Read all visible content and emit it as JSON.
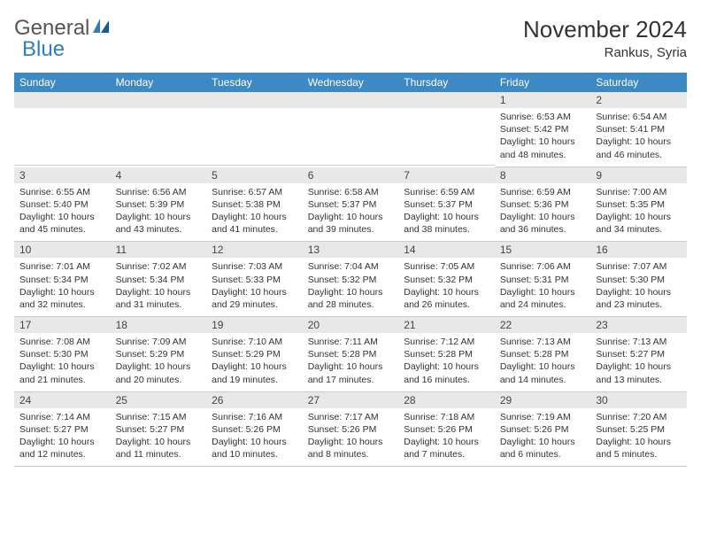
{
  "logo": {
    "word1": "General",
    "word2": "Blue"
  },
  "title": "November 2024",
  "subtitle": "Rankus, Syria",
  "colors": {
    "header_bg": "#3d89c4",
    "header_fg": "#ffffff",
    "daynum_bg": "#e8e8e8",
    "body_fg": "#333333",
    "logo_blue": "#2f7fbf"
  },
  "day_names": [
    "Sunday",
    "Monday",
    "Tuesday",
    "Wednesday",
    "Thursday",
    "Friday",
    "Saturday"
  ],
  "weeks": [
    [
      null,
      null,
      null,
      null,
      null,
      {
        "n": "1",
        "sr": "Sunrise: 6:53 AM",
        "ss": "Sunset: 5:42 PM",
        "dl": "Daylight: 10 hours and 48 minutes."
      },
      {
        "n": "2",
        "sr": "Sunrise: 6:54 AM",
        "ss": "Sunset: 5:41 PM",
        "dl": "Daylight: 10 hours and 46 minutes."
      }
    ],
    [
      {
        "n": "3",
        "sr": "Sunrise: 6:55 AM",
        "ss": "Sunset: 5:40 PM",
        "dl": "Daylight: 10 hours and 45 minutes."
      },
      {
        "n": "4",
        "sr": "Sunrise: 6:56 AM",
        "ss": "Sunset: 5:39 PM",
        "dl": "Daylight: 10 hours and 43 minutes."
      },
      {
        "n": "5",
        "sr": "Sunrise: 6:57 AM",
        "ss": "Sunset: 5:38 PM",
        "dl": "Daylight: 10 hours and 41 minutes."
      },
      {
        "n": "6",
        "sr": "Sunrise: 6:58 AM",
        "ss": "Sunset: 5:37 PM",
        "dl": "Daylight: 10 hours and 39 minutes."
      },
      {
        "n": "7",
        "sr": "Sunrise: 6:59 AM",
        "ss": "Sunset: 5:37 PM",
        "dl": "Daylight: 10 hours and 38 minutes."
      },
      {
        "n": "8",
        "sr": "Sunrise: 6:59 AM",
        "ss": "Sunset: 5:36 PM",
        "dl": "Daylight: 10 hours and 36 minutes."
      },
      {
        "n": "9",
        "sr": "Sunrise: 7:00 AM",
        "ss": "Sunset: 5:35 PM",
        "dl": "Daylight: 10 hours and 34 minutes."
      }
    ],
    [
      {
        "n": "10",
        "sr": "Sunrise: 7:01 AM",
        "ss": "Sunset: 5:34 PM",
        "dl": "Daylight: 10 hours and 32 minutes."
      },
      {
        "n": "11",
        "sr": "Sunrise: 7:02 AM",
        "ss": "Sunset: 5:34 PM",
        "dl": "Daylight: 10 hours and 31 minutes."
      },
      {
        "n": "12",
        "sr": "Sunrise: 7:03 AM",
        "ss": "Sunset: 5:33 PM",
        "dl": "Daylight: 10 hours and 29 minutes."
      },
      {
        "n": "13",
        "sr": "Sunrise: 7:04 AM",
        "ss": "Sunset: 5:32 PM",
        "dl": "Daylight: 10 hours and 28 minutes."
      },
      {
        "n": "14",
        "sr": "Sunrise: 7:05 AM",
        "ss": "Sunset: 5:32 PM",
        "dl": "Daylight: 10 hours and 26 minutes."
      },
      {
        "n": "15",
        "sr": "Sunrise: 7:06 AM",
        "ss": "Sunset: 5:31 PM",
        "dl": "Daylight: 10 hours and 24 minutes."
      },
      {
        "n": "16",
        "sr": "Sunrise: 7:07 AM",
        "ss": "Sunset: 5:30 PM",
        "dl": "Daylight: 10 hours and 23 minutes."
      }
    ],
    [
      {
        "n": "17",
        "sr": "Sunrise: 7:08 AM",
        "ss": "Sunset: 5:30 PM",
        "dl": "Daylight: 10 hours and 21 minutes."
      },
      {
        "n": "18",
        "sr": "Sunrise: 7:09 AM",
        "ss": "Sunset: 5:29 PM",
        "dl": "Daylight: 10 hours and 20 minutes."
      },
      {
        "n": "19",
        "sr": "Sunrise: 7:10 AM",
        "ss": "Sunset: 5:29 PM",
        "dl": "Daylight: 10 hours and 19 minutes."
      },
      {
        "n": "20",
        "sr": "Sunrise: 7:11 AM",
        "ss": "Sunset: 5:28 PM",
        "dl": "Daylight: 10 hours and 17 minutes."
      },
      {
        "n": "21",
        "sr": "Sunrise: 7:12 AM",
        "ss": "Sunset: 5:28 PM",
        "dl": "Daylight: 10 hours and 16 minutes."
      },
      {
        "n": "22",
        "sr": "Sunrise: 7:13 AM",
        "ss": "Sunset: 5:28 PM",
        "dl": "Daylight: 10 hours and 14 minutes."
      },
      {
        "n": "23",
        "sr": "Sunrise: 7:13 AM",
        "ss": "Sunset: 5:27 PM",
        "dl": "Daylight: 10 hours and 13 minutes."
      }
    ],
    [
      {
        "n": "24",
        "sr": "Sunrise: 7:14 AM",
        "ss": "Sunset: 5:27 PM",
        "dl": "Daylight: 10 hours and 12 minutes."
      },
      {
        "n": "25",
        "sr": "Sunrise: 7:15 AM",
        "ss": "Sunset: 5:27 PM",
        "dl": "Daylight: 10 hours and 11 minutes."
      },
      {
        "n": "26",
        "sr": "Sunrise: 7:16 AM",
        "ss": "Sunset: 5:26 PM",
        "dl": "Daylight: 10 hours and 10 minutes."
      },
      {
        "n": "27",
        "sr": "Sunrise: 7:17 AM",
        "ss": "Sunset: 5:26 PM",
        "dl": "Daylight: 10 hours and 8 minutes."
      },
      {
        "n": "28",
        "sr": "Sunrise: 7:18 AM",
        "ss": "Sunset: 5:26 PM",
        "dl": "Daylight: 10 hours and 7 minutes."
      },
      {
        "n": "29",
        "sr": "Sunrise: 7:19 AM",
        "ss": "Sunset: 5:26 PM",
        "dl": "Daylight: 10 hours and 6 minutes."
      },
      {
        "n": "30",
        "sr": "Sunrise: 7:20 AM",
        "ss": "Sunset: 5:25 PM",
        "dl": "Daylight: 10 hours and 5 minutes."
      }
    ]
  ]
}
